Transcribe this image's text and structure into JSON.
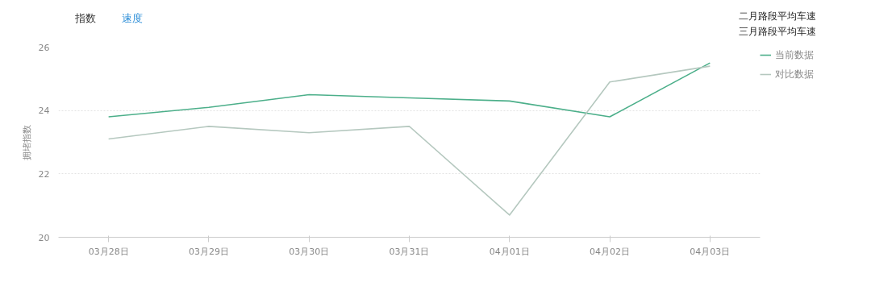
{
  "chart_data": {
    "type": "line",
    "ylabel": "拥堵指数",
    "categories": [
      "03月28日",
      "03月29日",
      "03月30日",
      "03月31日",
      "04月01日",
      "04月02日",
      "04月03日"
    ],
    "series": [
      {
        "name": "当前数据",
        "color": "#4caf8a",
        "values": [
          23.8,
          24.1,
          24.5,
          24.4,
          24.3,
          23.8,
          25.5
        ]
      },
      {
        "name": "对比数据",
        "color": "#b5c8bf",
        "values": [
          23.1,
          23.5,
          23.3,
          23.5,
          20.7,
          24.9,
          25.4
        ]
      }
    ],
    "ylim": [
      20,
      26
    ],
    "yticks": [
      20,
      22,
      24,
      26
    ],
    "grid": "y",
    "legend": "top right",
    "marker": "none",
    "line_style": "solid",
    "annotations": [
      "指数",
      "速度",
      "二月路段平均车速",
      "三月路段平均车速"
    ]
  }
}
